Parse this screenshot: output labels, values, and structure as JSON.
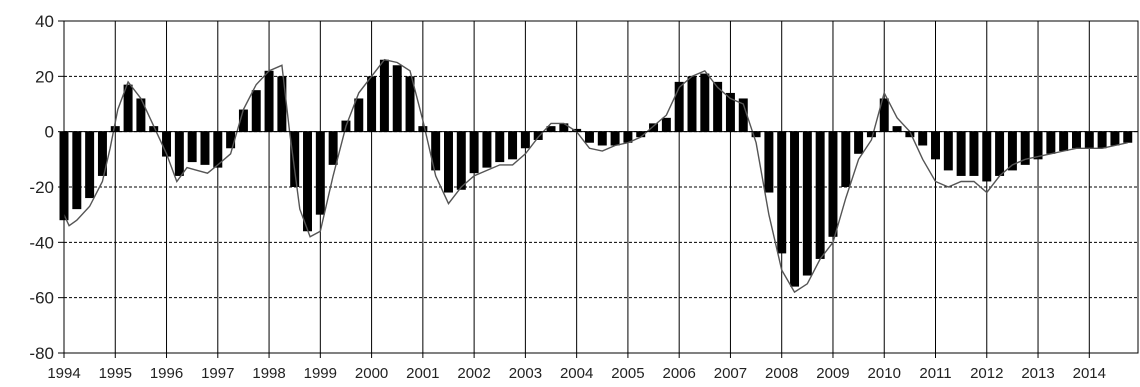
{
  "chart_data": {
    "type": "bar",
    "title": "",
    "xlabel": "",
    "ylabel": "",
    "xlim": [
      1994,
      2014.95
    ],
    "ylim": [
      -80,
      40
    ],
    "y_ticks": [
      "40",
      "20",
      "0",
      "-20",
      "-40",
      "-60",
      "-80"
    ],
    "x_tick_labels": [
      "1994",
      "1995",
      "1996",
      "1997",
      "1998",
      "1999",
      "2000",
      "2001",
      "2002",
      "2003",
      "2004",
      "2005",
      "2006",
      "2007",
      "2008",
      "2009",
      "2010",
      "2011",
      "2012",
      "2013",
      "2014"
    ],
    "grid": {
      "horizontal": "dashed",
      "vertical": "solid"
    },
    "legend": "none",
    "colors": {
      "bars": "#000000",
      "line": "#555555",
      "grid": "#000000"
    },
    "series": [
      {
        "kind": "bars",
        "points": [
          [
            1994.0,
            -32
          ],
          [
            1994.25,
            -28
          ],
          [
            1994.5,
            -24
          ],
          [
            1994.75,
            -16
          ],
          [
            1995.0,
            2
          ],
          [
            1995.25,
            17
          ],
          [
            1995.5,
            12
          ],
          [
            1995.75,
            2
          ],
          [
            1996.0,
            -9
          ],
          [
            1996.25,
            -16
          ],
          [
            1996.5,
            -11
          ],
          [
            1996.75,
            -12
          ],
          [
            1997.0,
            -13
          ],
          [
            1997.25,
            -6
          ],
          [
            1997.5,
            8
          ],
          [
            1997.75,
            15
          ],
          [
            1998.0,
            22
          ],
          [
            1998.25,
            20
          ],
          [
            1998.5,
            -20
          ],
          [
            1998.75,
            -36
          ],
          [
            1999.0,
            -30
          ],
          [
            1999.25,
            -12
          ],
          [
            1999.5,
            4
          ],
          [
            1999.75,
            12
          ],
          [
            2000.0,
            20
          ],
          [
            2000.25,
            26
          ],
          [
            2000.5,
            24
          ],
          [
            2000.75,
            20
          ],
          [
            2001.0,
            2
          ],
          [
            2001.25,
            -14
          ],
          [
            2001.5,
            -22
          ],
          [
            2001.75,
            -21
          ],
          [
            2002.0,
            -15
          ],
          [
            2002.25,
            -13
          ],
          [
            2002.5,
            -11
          ],
          [
            2002.75,
            -10
          ],
          [
            2003.0,
            -6
          ],
          [
            2003.25,
            -3
          ],
          [
            2003.5,
            2
          ],
          [
            2003.75,
            3
          ],
          [
            2004.0,
            1
          ],
          [
            2004.25,
            -4
          ],
          [
            2004.5,
            -5
          ],
          [
            2004.75,
            -5
          ],
          [
            2005.0,
            -4
          ],
          [
            2005.25,
            -2
          ],
          [
            2005.5,
            3
          ],
          [
            2005.75,
            5
          ],
          [
            2006.0,
            18
          ],
          [
            2006.25,
            20
          ],
          [
            2006.5,
            21
          ],
          [
            2006.75,
            18
          ],
          [
            2007.0,
            14
          ],
          [
            2007.25,
            12
          ],
          [
            2007.5,
            -2
          ],
          [
            2007.75,
            -22
          ],
          [
            2008.0,
            -44
          ],
          [
            2008.25,
            -56
          ],
          [
            2008.5,
            -52
          ],
          [
            2008.75,
            -46
          ],
          [
            2009.0,
            -38
          ],
          [
            2009.25,
            -20
          ],
          [
            2009.5,
            -8
          ],
          [
            2009.75,
            -2
          ],
          [
            2010.0,
            12
          ],
          [
            2010.25,
            2
          ],
          [
            2010.5,
            -2
          ],
          [
            2010.75,
            -5
          ],
          [
            2011.0,
            -10
          ],
          [
            2011.25,
            -14
          ],
          [
            2011.5,
            -16
          ],
          [
            2011.75,
            -16
          ],
          [
            2012.0,
            -18
          ],
          [
            2012.25,
            -16
          ],
          [
            2012.5,
            -14
          ],
          [
            2012.75,
            -12
          ],
          [
            2013.0,
            -10
          ],
          [
            2013.25,
            -8
          ],
          [
            2013.5,
            -7
          ],
          [
            2013.75,
            -6
          ],
          [
            2014.0,
            -6
          ],
          [
            2014.25,
            -6
          ],
          [
            2014.5,
            -5
          ],
          [
            2014.75,
            -4
          ]
        ]
      },
      {
        "kind": "line",
        "points": [
          [
            1994.0,
            -30
          ],
          [
            1994.1,
            -34
          ],
          [
            1994.25,
            -32
          ],
          [
            1994.5,
            -27
          ],
          [
            1994.75,
            -18
          ],
          [
            1994.9,
            -6
          ],
          [
            1995.05,
            8
          ],
          [
            1995.25,
            18
          ],
          [
            1995.5,
            12
          ],
          [
            1995.75,
            2
          ],
          [
            1996.0,
            -8
          ],
          [
            1996.2,
            -18
          ],
          [
            1996.4,
            -13
          ],
          [
            1996.6,
            -14
          ],
          [
            1996.8,
            -15
          ],
          [
            1997.0,
            -12
          ],
          [
            1997.25,
            -8
          ],
          [
            1997.5,
            8
          ],
          [
            1997.75,
            17
          ],
          [
            1998.0,
            22
          ],
          [
            1998.25,
            24
          ],
          [
            1998.4,
            0
          ],
          [
            1998.6,
            -28
          ],
          [
            1998.8,
            -38
          ],
          [
            1999.0,
            -36
          ],
          [
            1999.25,
            -16
          ],
          [
            1999.5,
            2
          ],
          [
            1999.75,
            14
          ],
          [
            2000.0,
            20
          ],
          [
            2000.25,
            26
          ],
          [
            2000.5,
            25
          ],
          [
            2000.75,
            22
          ],
          [
            2001.0,
            4
          ],
          [
            2001.25,
            -16
          ],
          [
            2001.5,
            -26
          ],
          [
            2001.75,
            -20
          ],
          [
            2002.0,
            -16
          ],
          [
            2002.25,
            -14
          ],
          [
            2002.5,
            -12
          ],
          [
            2002.75,
            -12
          ],
          [
            2003.0,
            -8
          ],
          [
            2003.25,
            -2
          ],
          [
            2003.5,
            3
          ],
          [
            2003.75,
            3
          ],
          [
            2004.0,
            0
          ],
          [
            2004.25,
            -6
          ],
          [
            2004.5,
            -7
          ],
          [
            2004.75,
            -5
          ],
          [
            2005.0,
            -4
          ],
          [
            2005.25,
            -2
          ],
          [
            2005.5,
            2
          ],
          [
            2005.75,
            6
          ],
          [
            2006.0,
            16
          ],
          [
            2006.25,
            20
          ],
          [
            2006.5,
            22
          ],
          [
            2006.75,
            16
          ],
          [
            2007.0,
            12
          ],
          [
            2007.25,
            10
          ],
          [
            2007.5,
            -4
          ],
          [
            2007.75,
            -30
          ],
          [
            2008.0,
            -50
          ],
          [
            2008.25,
            -58
          ],
          [
            2008.5,
            -55
          ],
          [
            2008.75,
            -46
          ],
          [
            2009.0,
            -40
          ],
          [
            2009.25,
            -24
          ],
          [
            2009.5,
            -10
          ],
          [
            2009.75,
            -3
          ],
          [
            2010.0,
            14
          ],
          [
            2010.25,
            5
          ],
          [
            2010.5,
            0
          ],
          [
            2010.75,
            -10
          ],
          [
            2011.0,
            -18
          ],
          [
            2011.25,
            -20
          ],
          [
            2011.5,
            -18
          ],
          [
            2011.75,
            -18
          ],
          [
            2012.0,
            -22
          ],
          [
            2012.25,
            -16
          ],
          [
            2012.5,
            -12
          ],
          [
            2012.75,
            -10
          ],
          [
            2013.0,
            -9
          ],
          [
            2013.25,
            -8
          ],
          [
            2013.5,
            -7
          ],
          [
            2013.75,
            -6
          ],
          [
            2014.0,
            -6
          ],
          [
            2014.25,
            -6
          ],
          [
            2014.5,
            -5
          ],
          [
            2014.75,
            -4
          ]
        ]
      }
    ]
  }
}
